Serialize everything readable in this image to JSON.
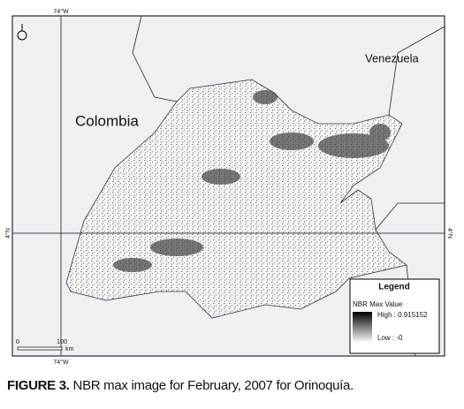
{
  "graticule": {
    "top_lon": "74°W",
    "bottom_lon": "74°W",
    "left_lat": "4°N",
    "right_lat": "4°N"
  },
  "map": {
    "labels": [
      "Venezuela",
      "Colombia"
    ]
  },
  "legend": {
    "title": "Legend",
    "layer": "NBR Max Value",
    "high": "High : 0.915152",
    "low": "Low : -0"
  },
  "scale_bar": {
    "start": "0",
    "end": "100",
    "unit": "km"
  },
  "caption": {
    "label": "FIGURE 3.",
    "text": "NBR max image for February, 2007 for Orinoquía."
  }
}
